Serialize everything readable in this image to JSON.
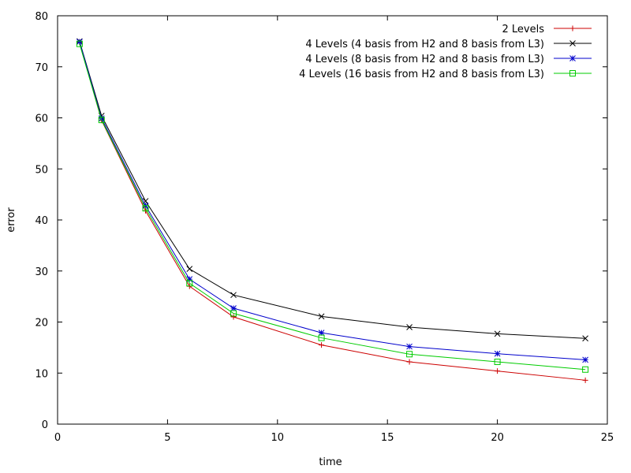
{
  "chart_data": {
    "type": "line",
    "xlabel": "time",
    "ylabel": "error",
    "xlim": [
      0,
      25
    ],
    "ylim": [
      0,
      80
    ],
    "xticks": [
      "0",
      "5",
      "10",
      "15",
      "20",
      "25"
    ],
    "yticks": [
      "0",
      "10",
      "20",
      "30",
      "40",
      "50",
      "60",
      "70",
      "80"
    ],
    "grid": false,
    "legend_position": "top-right",
    "x": [
      1,
      2,
      4,
      6,
      8,
      12,
      16,
      20,
      24
    ],
    "series": [
      {
        "name": "2 Levels",
        "color": "#cc0000",
        "marker": "plus",
        "values": [
          74.8,
          59.5,
          41.8,
          27.0,
          21.0,
          15.5,
          12.2,
          10.4,
          8.6
        ]
      },
      {
        "name": "4 Levels (4 basis from H2 and 8 basis from L3)",
        "color": "#000000",
        "marker": "x",
        "values": [
          75.0,
          60.4,
          43.7,
          30.4,
          25.3,
          21.1,
          19.0,
          17.7,
          16.8
        ]
      },
      {
        "name": "4 Levels (8 basis from H2 and 8 basis from L3)",
        "color": "#0000cc",
        "marker": "star",
        "values": [
          74.9,
          59.9,
          42.8,
          28.4,
          22.7,
          17.9,
          15.2,
          13.8,
          12.6
        ]
      },
      {
        "name": "4 Levels (16 basis from H2 and 8 basis from L3)",
        "color": "#00cc00",
        "marker": "square",
        "values": [
          74.5,
          59.6,
          42.3,
          27.6,
          21.7,
          16.9,
          13.7,
          12.2,
          10.7
        ]
      }
    ]
  }
}
